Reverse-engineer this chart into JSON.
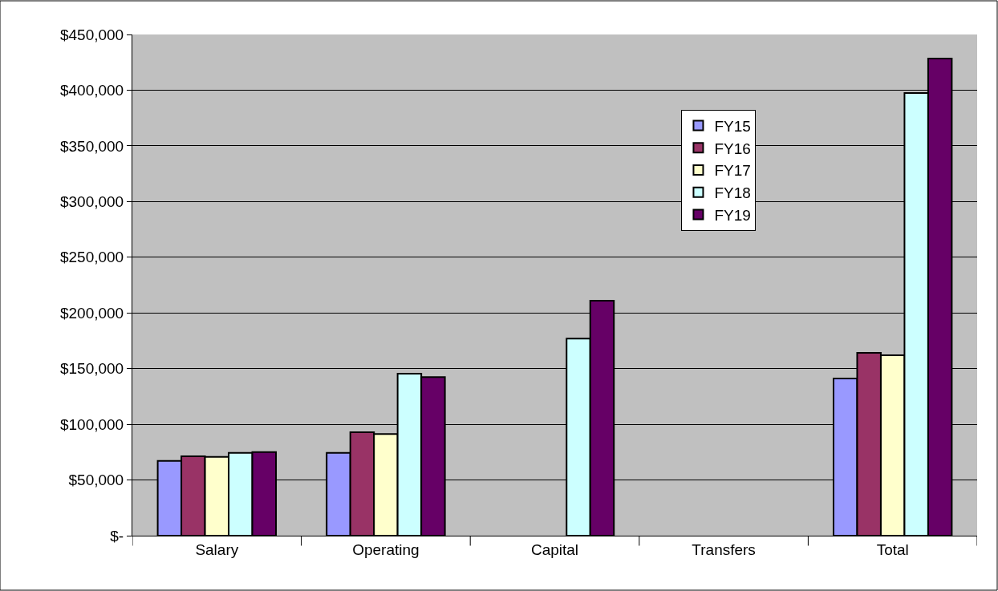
{
  "chart_data": {
    "type": "bar",
    "categories": [
      "Salary",
      "Operating",
      "Capital",
      "Transfers",
      "Total"
    ],
    "series": [
      {
        "name": "FY15",
        "color": "#9999ff",
        "values": [
          67200,
          74400,
          null,
          null,
          141100
        ]
      },
      {
        "name": "FY16",
        "color": "#993366",
        "values": [
          71300,
          92900,
          null,
          null,
          164200
        ]
      },
      {
        "name": "FY17",
        "color": "#ffffcc",
        "values": [
          70800,
          91200,
          null,
          null,
          162000
        ]
      },
      {
        "name": "FY18",
        "color": "#ccffff",
        "values": [
          74400,
          145500,
          177000,
          null,
          397400
        ]
      },
      {
        "name": "FY19",
        "color": "#660066",
        "values": [
          75100,
          142300,
          211000,
          null,
          428400
        ]
      }
    ],
    "ylim": [
      0,
      450000
    ],
    "yticks": [
      {
        "value": 0,
        "label": "$-"
      },
      {
        "value": 50000,
        "label": "$50,000"
      },
      {
        "value": 100000,
        "label": "$100,000"
      },
      {
        "value": 150000,
        "label": "$150,000"
      },
      {
        "value": 200000,
        "label": "$200,000"
      },
      {
        "value": 250000,
        "label": "$250,000"
      },
      {
        "value": 300000,
        "label": "$300,000"
      },
      {
        "value": 350000,
        "label": "$350,000"
      },
      {
        "value": 400000,
        "label": "$400,000"
      },
      {
        "value": 450000,
        "label": "$450,000"
      }
    ],
    "grid": "y",
    "legend": "top right"
  }
}
